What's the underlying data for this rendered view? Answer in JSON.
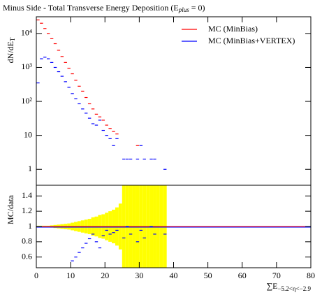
{
  "chart_data": [
    {
      "type": "scatter",
      "title": "Minus Side - Total Transverse Energy Deposition (E",
      "title_sub": "plus",
      "title_end": " = 0)",
      "y_label": "dN/dE",
      "y_label_sub": "T",
      "x": [
        0.5,
        1.5,
        2.5,
        3.5,
        4.5,
        5.5,
        6.5,
        7.5,
        8.5,
        9.5,
        10.5,
        11.5,
        12.5,
        13.5,
        14.5,
        15.5,
        16.5,
        17.5,
        18.5,
        19.5,
        20.5,
        21.5,
        22.5,
        23.5,
        24.5,
        25.5,
        26.5,
        27.5,
        28.5,
        29.5,
        30.5,
        31.5,
        32.5,
        33.5,
        34.5,
        35.5,
        36.5,
        37.5,
        38.5
      ],
      "xlim": [
        0,
        80
      ],
      "ylim": [
        0.34,
        31000
      ],
      "log_scale": true,
      "yticks": [
        1,
        10,
        {
          "value": 100,
          "label": "10²"
        },
        {
          "value": 1000,
          "label": "10³"
        },
        {
          "value": 10000,
          "label": "10⁴"
        }
      ],
      "legend": "upper right",
      "series": [
        {
          "name": "MC (MinBias)",
          "color": "#ff0000",
          "values": [
            25000,
            20000,
            14000,
            10000,
            7000,
            5000,
            3200,
            2100,
            1400,
            950,
            650,
            420,
            280,
            200,
            130,
            85,
            60,
            42,
            35,
            28,
            20,
            16,
            13,
            11,
            null,
            null,
            null,
            null,
            null,
            5,
            null,
            null,
            null,
            null,
            null,
            null,
            null,
            null,
            null
          ]
        },
        {
          "name": "MC (MinBias+VERTEX)",
          "color": "#0000ff",
          "values": [
            350,
            1800,
            2000,
            1800,
            1400,
            1000,
            750,
            550,
            380,
            260,
            170,
            120,
            85,
            60,
            45,
            32,
            22,
            20,
            28,
            14,
            10,
            8,
            5,
            8,
            null,
            2,
            2,
            2,
            null,
            2,
            5,
            2,
            null,
            2,
            2,
            null,
            null,
            1,
            null
          ]
        }
      ]
    },
    {
      "type": "ratio",
      "y_label": "MC/data",
      "x_label": "∑E",
      "x_label_sub": "−5.2<η<−2.9",
      "x": [
        0.5,
        1.5,
        2.5,
        3.5,
        4.5,
        5.5,
        6.5,
        7.5,
        8.5,
        9.5,
        10.5,
        11.5,
        12.5,
        13.5,
        14.5,
        15.5,
        16.5,
        17.5,
        18.5,
        19.5,
        20.5,
        21.5,
        22.5,
        23.5,
        24.5,
        25.5,
        26.5,
        27.5,
        28.5,
        29.5,
        30.5,
        31.5,
        32.5,
        33.5,
        34.5,
        35.5,
        36.5,
        37.5,
        38.5
      ],
      "xlim": [
        0,
        80
      ],
      "xticks": [
        0,
        10,
        20,
        30,
        40,
        50,
        60,
        70,
        80
      ],
      "ylim": [
        0.46,
        1.54
      ],
      "yticks": [
        0.6,
        0.8,
        1,
        1.2,
        1.4
      ],
      "reference": 1,
      "band": {
        "color": "#ffff00",
        "values": [
          0.01,
          0.01,
          0.01,
          0.01,
          0.015,
          0.02,
          0.025,
          0.03,
          0.035,
          0.04,
          0.05,
          0.06,
          0.07,
          0.08,
          0.09,
          0.1,
          0.12,
          0.13,
          0.15,
          0.16,
          0.18,
          0.2,
          0.22,
          0.25,
          0.3,
          0.6,
          0.6,
          0.6,
          0.6,
          0.6,
          0.6,
          0.6,
          0.6,
          0.6,
          0.6,
          0.6,
          0.6,
          0.6,
          null
        ]
      },
      "series": [
        {
          "color": "#0000ff",
          "values": [
            null,
            null,
            null,
            null,
            null,
            null,
            null,
            null,
            null,
            null,
            0.55,
            0.6,
            0.66,
            0.72,
            0.78,
            0.84,
            0.9,
            0.8,
            0.72,
            0.88,
            0.95,
            0.9,
            0.92,
            0.95,
            null,
            0.85,
            1.0,
            0.9,
            null,
            0.8,
            0.95,
            0.85,
            null,
            1.0,
            0.9,
            null,
            null,
            0.9,
            null
          ]
        }
      ]
    }
  ]
}
